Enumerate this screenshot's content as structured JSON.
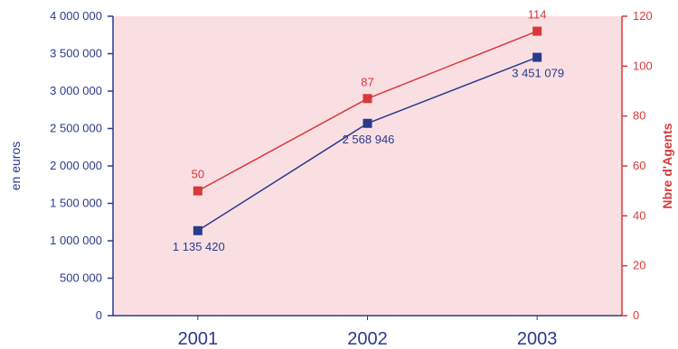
{
  "chart_data": {
    "type": "line",
    "categories": [
      "2001",
      "2002",
      "2003"
    ],
    "series": [
      {
        "axis": "left",
        "color": "#2b3a8c",
        "values": [
          1135420,
          2568946,
          3451079
        ],
        "value_labels": [
          "1 135 420",
          "2 568 946",
          "3 451 079"
        ]
      },
      {
        "axis": "right",
        "color": "#d9383a",
        "values": [
          50,
          87,
          114
        ],
        "value_labels": [
          "50",
          "87",
          "114"
        ]
      }
    ],
    "left_axis": {
      "label": "en euros",
      "min": 0,
      "max": 4000000,
      "ticks": [
        0,
        500000,
        1000000,
        1500000,
        2000000,
        2500000,
        3000000,
        3500000,
        4000000
      ],
      "tick_labels": [
        "0",
        "500 000",
        "1 000 000",
        "1 500 000",
        "2 000 000",
        "2 500 000",
        "3 000 000",
        "3 500 000",
        "4 000 000"
      ],
      "color": "#2b3a8c"
    },
    "right_axis": {
      "label": "Nbre d'Agents",
      "min": 0,
      "max": 120,
      "ticks": [
        0,
        20,
        40,
        60,
        80,
        100,
        120
      ],
      "tick_labels": [
        "0",
        "20",
        "40",
        "60",
        "80",
        "100",
        "120"
      ],
      "color": "#d9383a"
    },
    "plot_background": "#f9dfe2",
    "grid": false
  }
}
